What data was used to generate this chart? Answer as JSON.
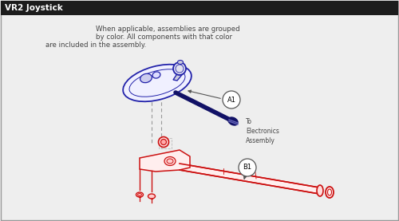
{
  "title": "VR2 Joystick",
  "title_bg": "#1c1c1c",
  "title_color": "#ffffff",
  "body_bg": "#eeeeee",
  "description_line1": "When applicable, assemblies are grouped",
  "description_line2": "by color. All components with that color",
  "description_line3": "are included in the assembly.",
  "desc_color": "#444444",
  "blue_color": "#2222aa",
  "red_color": "#cc1111",
  "dark_blue": "#111166",
  "label_A1": "A1",
  "label_B1": "B1",
  "label_elec": "To\nElectronics\nAssembly",
  "border_color": "#999999"
}
